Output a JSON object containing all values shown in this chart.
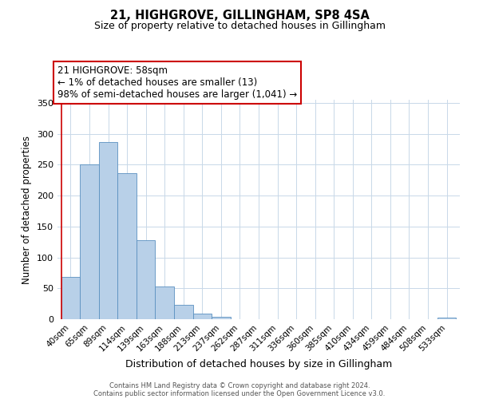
{
  "title": "21, HIGHGROVE, GILLINGHAM, SP8 4SA",
  "subtitle": "Size of property relative to detached houses in Gillingham",
  "xlabel": "Distribution of detached houses by size in Gillingham",
  "ylabel": "Number of detached properties",
  "categories": [
    "40sqm",
    "65sqm",
    "89sqm",
    "114sqm",
    "139sqm",
    "163sqm",
    "188sqm",
    "213sqm",
    "237sqm",
    "262sqm",
    "287sqm",
    "311sqm",
    "336sqm",
    "360sqm",
    "385sqm",
    "410sqm",
    "434sqm",
    "459sqm",
    "484sqm",
    "508sqm",
    "533sqm"
  ],
  "values": [
    68,
    251,
    286,
    236,
    128,
    53,
    23,
    9,
    4,
    0,
    0,
    0,
    0,
    0,
    0,
    0,
    0,
    0,
    0,
    0,
    2
  ],
  "bar_color": "#b8d0e8",
  "bar_edge_color": "#5a90c0",
  "highlight_line_color": "#cc0000",
  "annotation_title": "21 HIGHGROVE: 58sqm",
  "annotation_line1": "← 1% of detached houses are smaller (13)",
  "annotation_line2": "98% of semi-detached houses are larger (1,041) →",
  "annotation_box_color": "#ffffff",
  "annotation_box_edge": "#cc0000",
  "ylim": [
    0,
    355
  ],
  "yticks": [
    0,
    50,
    100,
    150,
    200,
    250,
    300,
    350
  ],
  "footer_line1": "Contains HM Land Registry data © Crown copyright and database right 2024.",
  "footer_line2": "Contains public sector information licensed under the Open Government Licence v3.0.",
  "background_color": "#ffffff",
  "grid_color": "#c8d8e8"
}
